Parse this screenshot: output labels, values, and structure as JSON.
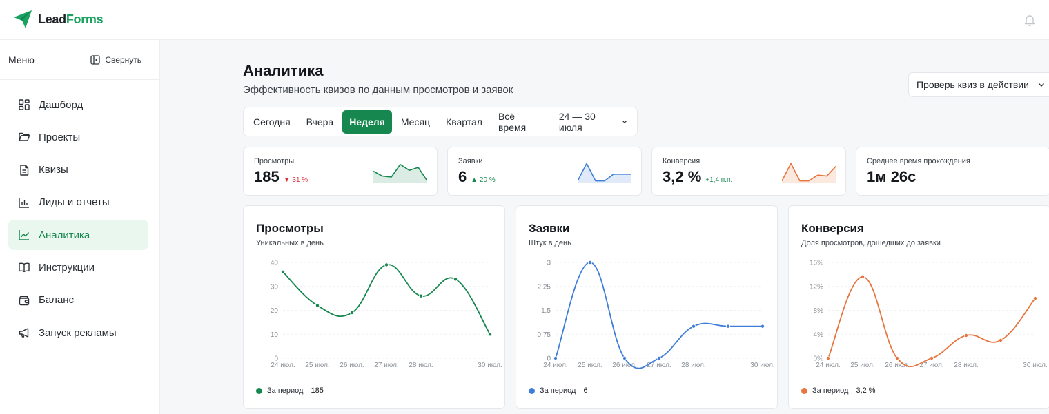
{
  "app": {
    "logo_lead": "Lead",
    "logo_forms": "Forms"
  },
  "sidebar": {
    "menu_label": "Меню",
    "collapse_label": "Свернуть",
    "items": [
      {
        "label": "Дашборд",
        "icon": "grid-icon"
      },
      {
        "label": "Проекты",
        "icon": "folder-icon"
      },
      {
        "label": "Квизы",
        "icon": "document-icon"
      },
      {
        "label": "Лиды и отчеты",
        "icon": "bar-chart-icon"
      },
      {
        "label": "Аналитика",
        "icon": "line-chart-icon",
        "active": true
      },
      {
        "label": "Инструкции",
        "icon": "book-icon"
      },
      {
        "label": "Баланс",
        "icon": "wallet-icon"
      },
      {
        "label": "Запуск рекламы",
        "icon": "megaphone-icon"
      }
    ]
  },
  "page": {
    "title": "Аналитика",
    "subtitle": "Эффективность квизов по данным просмотров и заявок",
    "quiz_button": "Проверь квиз в действии"
  },
  "tabs": {
    "items": [
      "Сегодня",
      "Вчера",
      "Неделя",
      "Месяц",
      "Квартал",
      "Всё время"
    ],
    "active": "Неделя",
    "range": "24 — 30 июля"
  },
  "kpis": [
    {
      "label": "Просмотры",
      "value": "185",
      "delta": "▼ 31 %",
      "delta_color": "#e0303a",
      "color": "#16884f",
      "spark": [
        0.45,
        0.7,
        0.75,
        0.1,
        0.4,
        0.25,
        0.95
      ]
    },
    {
      "label": "Заявки",
      "value": "6",
      "delta": "▲ 20 %",
      "delta_color": "#16884f",
      "color": "#3f7ed8",
      "spark": [
        0.95,
        0.05,
        0.95,
        0.95,
        0.6,
        0.6,
        0.6
      ]
    },
    {
      "label": "Конверсия",
      "value": "3,2 %",
      "delta": "+1,4 п.п.",
      "delta_color": "#16884f",
      "color": "#e8743e",
      "spark": [
        0.95,
        0.05,
        0.95,
        0.95,
        0.65,
        0.7,
        0.2
      ]
    },
    {
      "label": "Среднее время прохождения",
      "value": "1м 26с",
      "delta": "",
      "delta_color": "#16884f",
      "color": "",
      "spark": []
    }
  ],
  "cards": [
    {
      "title": "Просмотры",
      "subtitle": "Уникальных в день",
      "color": "#16884f",
      "legend_label": "За период",
      "legend_value": "185"
    },
    {
      "title": "Заявки",
      "subtitle": "Штук в день",
      "color": "#3f7ed8",
      "legend_label": "За период",
      "legend_value": "6"
    },
    {
      "title": "Конверсия",
      "subtitle": "Доля просмотров, дошедших до заявки",
      "color": "#e8743e",
      "legend_label": "За период",
      "legend_value": "3,2 %"
    }
  ],
  "chart_data": [
    {
      "type": "line",
      "title": "Просмотры",
      "subtitle": "Уникальных в день",
      "x": [
        "24 июл.",
        "25 июл.",
        "26 июл.",
        "27 июл.",
        "28 июл.",
        "29 июл.",
        "30 июл."
      ],
      "x_tick_labels": [
        "24 июл.",
        "25 июл.",
        "26 июл.",
        "27 июл.",
        "28 июл.",
        "30 июл."
      ],
      "series": [
        {
          "values": [
            36,
            22,
            19,
            39,
            26,
            33,
            10
          ]
        }
      ],
      "ylim": [
        0,
        40
      ],
      "y_ticks": [
        0,
        10,
        20,
        30,
        40
      ],
      "y_tick_labels": [
        "0",
        "10",
        "20",
        "30",
        "40"
      ],
      "grid": true
    },
    {
      "type": "line",
      "title": "Заявки",
      "subtitle": "Штук в день",
      "x": [
        "24 июл.",
        "25 июл.",
        "26 июл.",
        "27 июл.",
        "28 июл.",
        "29 июл.",
        "30 июл."
      ],
      "x_tick_labels": [
        "24 июл.",
        "25 июл.",
        "26 июл.",
        "27 июл.",
        "28 июл.",
        "30 июл."
      ],
      "series": [
        {
          "values": [
            0,
            3,
            0,
            0,
            1,
            1,
            1
          ]
        }
      ],
      "ylim": [
        0,
        3
      ],
      "y_ticks": [
        0,
        0.75,
        1.5,
        2.25,
        3
      ],
      "y_tick_labels": [
        "0",
        "0,75",
        "1,5",
        "2,25",
        "3"
      ],
      "grid": true
    },
    {
      "type": "line",
      "title": "Конверсия",
      "subtitle": "Доля просмотров, дошедших до заявки",
      "x": [
        "24 июл.",
        "25 июл.",
        "26 июл.",
        "27 июл.",
        "28 июл.",
        "29 июл.",
        "30 июл."
      ],
      "x_tick_labels": [
        "24 июл.",
        "25 июл.",
        "26 июл.",
        "27 июл.",
        "28 июл.",
        "30 июл."
      ],
      "series": [
        {
          "values": [
            0,
            13.6,
            0,
            0,
            3.8,
            3,
            10
          ]
        }
      ],
      "ylim": [
        0,
        16
      ],
      "y_ticks": [
        0,
        4,
        8,
        12,
        16
      ],
      "y_tick_labels": [
        "0%",
        "4%",
        "8%",
        "12%",
        "16%"
      ],
      "grid": true
    }
  ]
}
